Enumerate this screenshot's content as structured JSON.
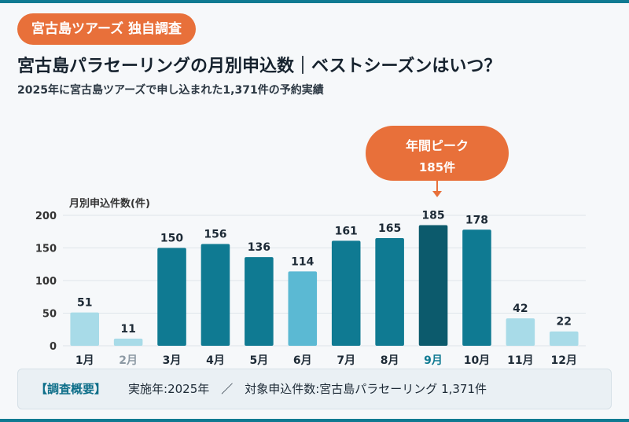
{
  "header": {
    "badge": "宮古島ツアーズ 独自調査",
    "title": "宮古島パラセーリングの月別申込数｜ベストシーズンはいつ？",
    "subtitle": "2025年に宮古島ツアーズで申し込まれた1,371件の予約実績"
  },
  "callout": {
    "line1": "年間ピーク",
    "line2": "185件"
  },
  "summary": {
    "heading": "【調査概要】",
    "text": "実施年:2025年　／　対象申込件数:宮古島パラセーリング 1,371件"
  },
  "colors": {
    "accent": "#e8703a",
    "bar_dark": "#0f7a92",
    "bar_peak": "#0c5a6c",
    "bar_mid": "#5bb9d3",
    "bar_light": "#a8dbe8"
  },
  "chart_data": {
    "type": "bar",
    "categories": [
      "1月",
      "2月",
      "3月",
      "4月",
      "5月",
      "6月",
      "7月",
      "8月",
      "9月",
      "10月",
      "11月",
      "12月"
    ],
    "values": [
      51,
      11,
      150,
      156,
      136,
      114,
      161,
      165,
      185,
      178,
      42,
      22
    ],
    "ylabel": "月別申込件数(件)",
    "ylim": [
      0,
      200
    ],
    "yticks": [
      0,
      50,
      100,
      150,
      200
    ],
    "grid": true,
    "tiers": [
      "light",
      "light",
      "dark",
      "dark",
      "dark",
      "mid",
      "dark",
      "dark",
      "peak",
      "dark",
      "light",
      "light"
    ]
  }
}
